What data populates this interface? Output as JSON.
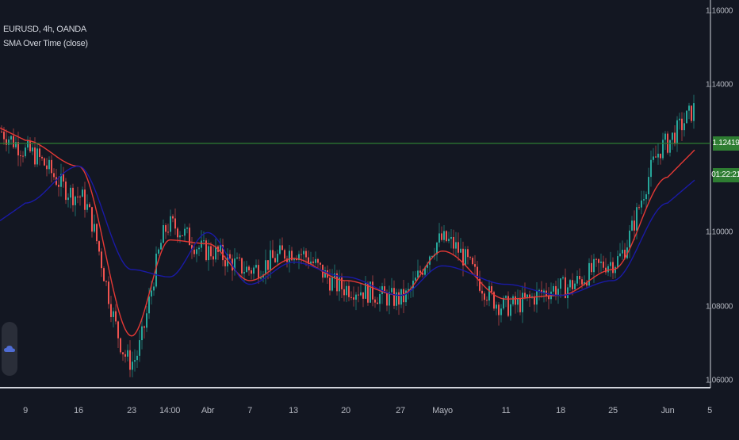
{
  "legend": {
    "symbol_line": "EURUSD, 4h, OANDA",
    "indicator_line": "SMA Over Time (close)"
  },
  "price_axis": {
    "labels": [
      "1.16000",
      "1.14000",
      "1.10000",
      "1.08000",
      "1.06000"
    ],
    "current_price": "1.12419",
    "countdown": "01:22:21"
  },
  "time_axis": {
    "labels": [
      "9",
      "16",
      "23",
      "14:00",
      "Abr",
      "7",
      "13",
      "20",
      "27",
      "Mayo",
      "11",
      "18",
      "25",
      "Jun",
      "5"
    ]
  },
  "colors": {
    "background": "#131722",
    "bull_candle": "#26a69a",
    "bear_candle": "#ef5350",
    "fast_sma": "#e53935",
    "slow_sma": "#1a1aa6",
    "price_line": "#2e7d32"
  },
  "chart_data": {
    "type": "line",
    "title": "EURUSD, 4h, OANDA",
    "ylim": [
      1.058,
      1.163
    ],
    "y_ticks": [
      1.06,
      1.08,
      1.1,
      1.14,
      1.16
    ],
    "x": [
      "9",
      "16",
      "23",
      "14:00",
      "Abr",
      "7",
      "13",
      "20",
      "27",
      "Mayo",
      "11",
      "18",
      "25",
      "Jun"
    ],
    "series": [
      {
        "name": "close",
        "values": [
          1.122,
          1.11,
          1.065,
          1.102,
          1.095,
          1.09,
          1.095,
          1.085,
          1.082,
          1.098,
          1.08,
          1.085,
          1.092,
          1.1242
        ]
      },
      {
        "values": [
          1.125,
          1.118,
          1.072,
          1.098,
          1.097,
          1.087,
          1.093,
          1.087,
          1.083,
          1.095,
          1.082,
          1.083,
          1.09,
          1.115
        ]
      },
      {
        "values": [
          1.108,
          1.118,
          1.09,
          1.088,
          1.1,
          1.086,
          1.092,
          1.088,
          1.083,
          1.091,
          1.086,
          1.083,
          1.087,
          1.108
        ]
      }
    ],
    "last_price": 1.12419,
    "grid": false,
    "legend_position": "top-left"
  }
}
